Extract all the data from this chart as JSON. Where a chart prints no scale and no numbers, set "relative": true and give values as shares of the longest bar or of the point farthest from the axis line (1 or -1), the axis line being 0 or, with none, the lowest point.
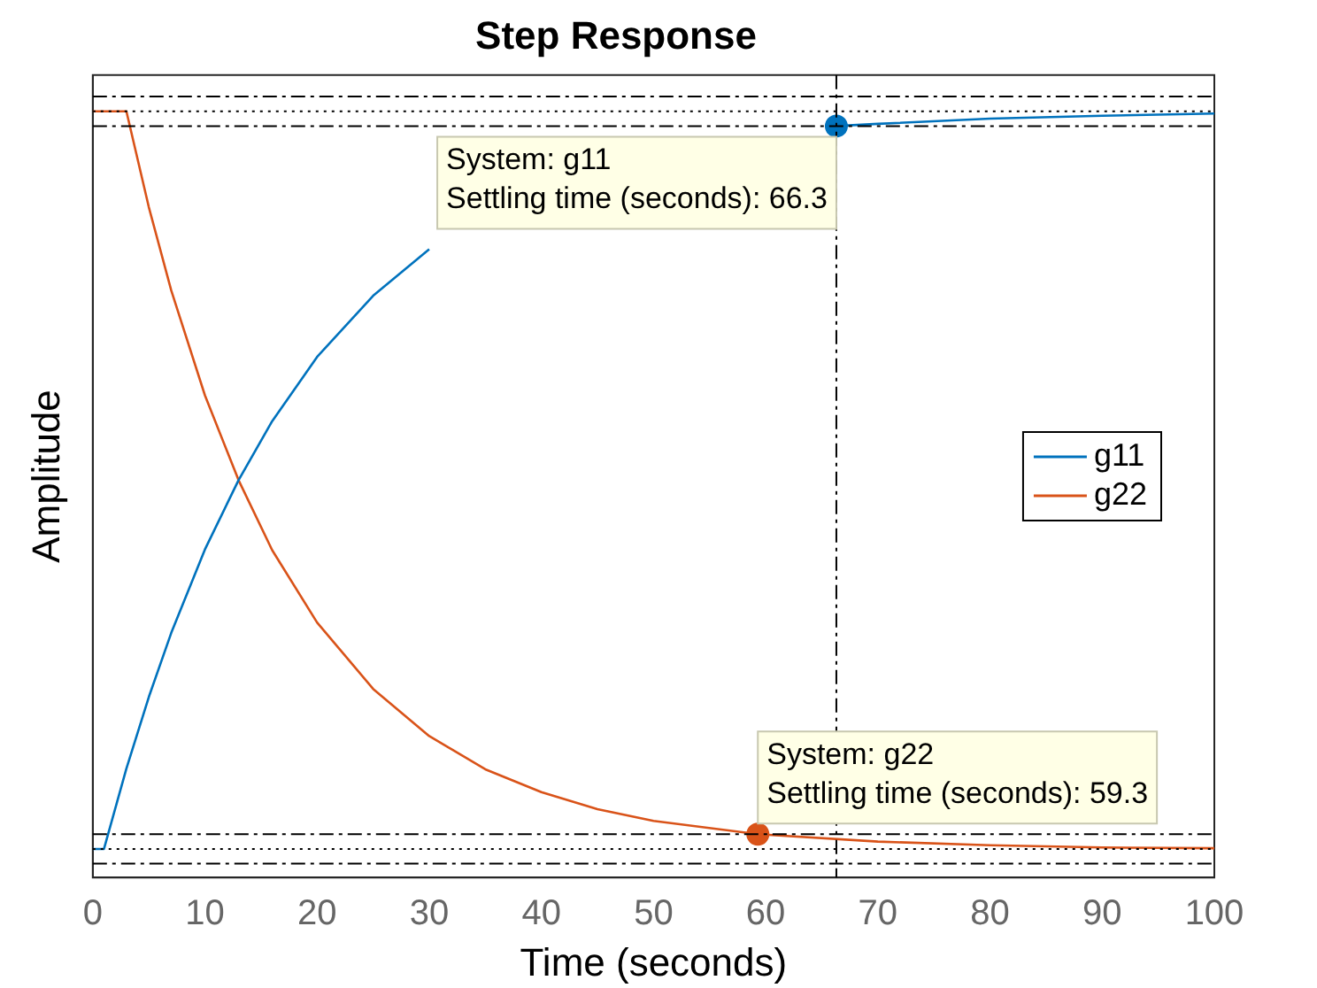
{
  "chart_data": {
    "type": "line",
    "title": "Step Response",
    "xlabel": "Time (seconds)",
    "ylabel": "Amplitude",
    "relative": true,
    "xlim": [
      0,
      100
    ],
    "xticks": [
      0,
      10,
      20,
      30,
      40,
      50,
      60,
      70,
      80,
      90,
      100
    ],
    "tick_labels": "x",
    "legend": "right",
    "grid": false,
    "marker": "none",
    "series": [
      {
        "name": "g11",
        "color": "#0072bd",
        "x": [
          0,
          1,
          3,
          5,
          7,
          10,
          13,
          16,
          20,
          25,
          30,
          35,
          40,
          45,
          50,
          55,
          60,
          66.3,
          70,
          80,
          90,
          100
        ],
        "values": [
          0,
          0,
          0.109,
          0.206,
          0.293,
          0.406,
          0.5,
          0.58,
          0.667,
          0.75,
          0.813,
          null,
          null,
          null,
          null,
          null,
          null,
          0.98,
          0.983,
          0.99,
          0.994,
          0.997
        ]
      },
      {
        "name": "g22",
        "color": "#d95319",
        "x": [
          0,
          3,
          5,
          7,
          10,
          13,
          16,
          20,
          25,
          30,
          35,
          40,
          45,
          50,
          59.3,
          70,
          80,
          90,
          100
        ],
        "values": [
          1,
          1,
          0.87,
          0.757,
          0.615,
          0.5,
          0.405,
          0.307,
          0.217,
          0.153,
          0.108,
          0.077,
          0.054,
          0.038,
          0.02,
          0.01,
          0.005,
          0.002,
          0.001
        ]
      },
      {
        "type": "scatter",
        "marker": "circle",
        "color": "#0072bd",
        "x": [
          66.3
        ],
        "values": [
          0.98
        ]
      },
      {
        "type": "scatter",
        "marker": "circle",
        "color": "#d95319",
        "x": [
          59.3
        ],
        "values": [
          0.02
        ]
      }
    ],
    "ref_lines": [
      {
        "axis": "y",
        "value": 1.02,
        "line_style": "dashdot"
      },
      {
        "axis": "y",
        "value": 1,
        "line_style": "dotted"
      },
      {
        "axis": "y",
        "value": 0.98,
        "line_style": "dashdot"
      },
      {
        "axis": "y",
        "value": 0.02,
        "line_style": "dashdot"
      },
      {
        "axis": "y",
        "value": 0,
        "line_style": "dotted"
      },
      {
        "axis": "y",
        "value": -0.02,
        "line_style": "dashdot"
      },
      {
        "axis": "x",
        "value": 66.3,
        "line_style": "dashdot"
      }
    ],
    "annotations": [
      {
        "text": "System: g11\nSettling time (seconds): 66.3",
        "x": 66.3,
        "y": 0.98
      },
      {
        "text": "System: g22\nSettling time (seconds): 59.3",
        "x": 59.3,
        "y": 0.02
      }
    ]
  }
}
